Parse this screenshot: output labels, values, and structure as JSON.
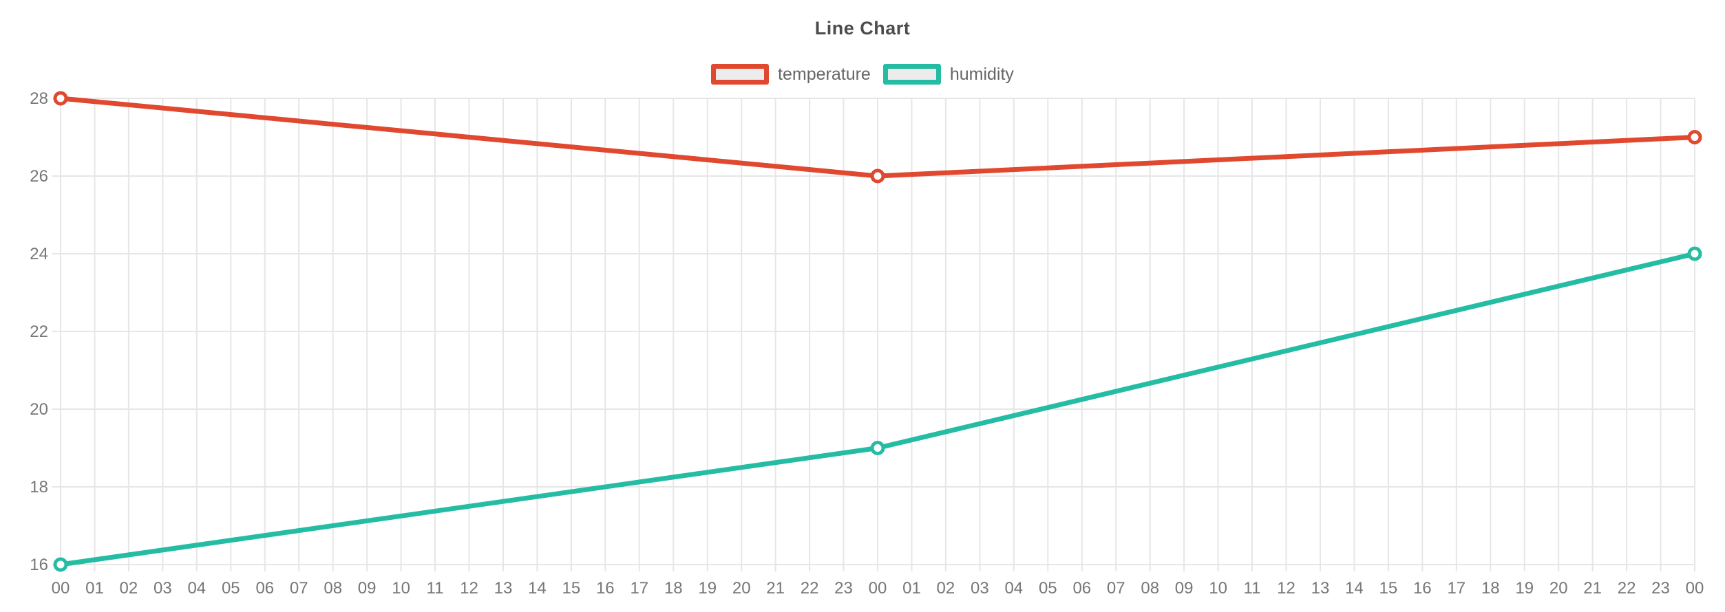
{
  "page": {
    "background": "#ffffff"
  },
  "chart_data": {
    "type": "line",
    "title": "Line Chart",
    "title_color": "#4c4c4c",
    "legend_position": "top",
    "legend_swatch_fill": "#ececec",
    "grid": true,
    "grid_color": "#e6e6e6",
    "tick_color": "#777777",
    "xlabel": "",
    "ylabel": "",
    "ylim": [
      16,
      28
    ],
    "y_ticks": [
      16,
      18,
      20,
      22,
      24,
      26,
      28
    ],
    "x_labels": [
      "00",
      "01",
      "02",
      "03",
      "04",
      "05",
      "06",
      "07",
      "08",
      "09",
      "10",
      "11",
      "12",
      "13",
      "14",
      "15",
      "16",
      "17",
      "18",
      "19",
      "20",
      "21",
      "22",
      "23",
      "00",
      "01",
      "02",
      "03",
      "04",
      "05",
      "06",
      "07",
      "08",
      "09",
      "10",
      "11",
      "12",
      "13",
      "14",
      "15",
      "16",
      "17",
      "18",
      "19",
      "20",
      "21",
      "22",
      "23",
      "00"
    ],
    "series": [
      {
        "name": "temperature",
        "color": "#e0482f",
        "points": [
          {
            "x_index": 0,
            "x_label": "00",
            "value": 28
          },
          {
            "x_index": 24,
            "x_label": "00",
            "value": 26
          },
          {
            "x_index": 48,
            "x_label": "00",
            "value": 27
          }
        ]
      },
      {
        "name": "humidity",
        "color": "#25bca4",
        "points": [
          {
            "x_index": 0,
            "x_label": "00",
            "value": 16
          },
          {
            "x_index": 24,
            "x_label": "00",
            "value": 19
          },
          {
            "x_index": 48,
            "x_label": "00",
            "value": 24
          }
        ]
      }
    ]
  }
}
